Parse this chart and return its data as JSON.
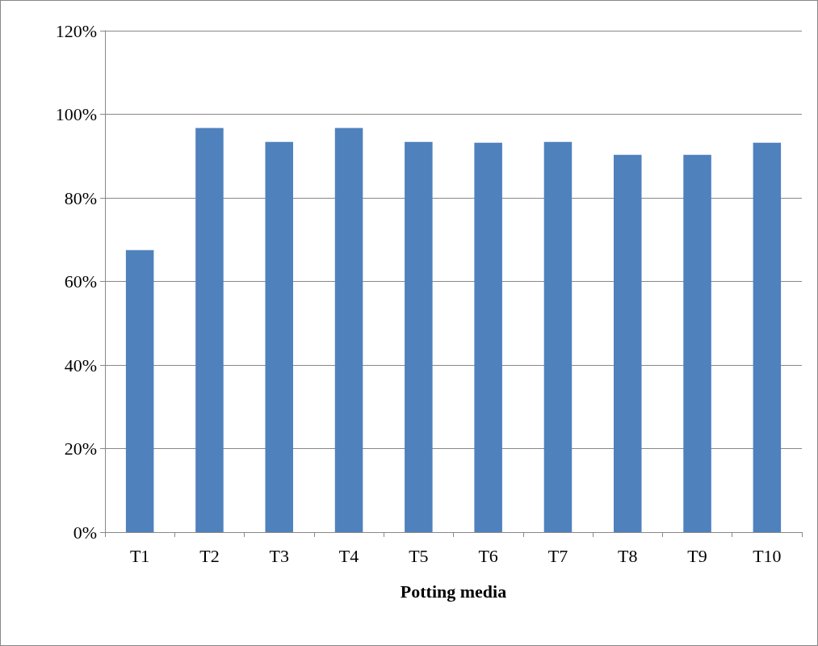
{
  "chart_data": {
    "type": "bar",
    "xlabel": "Potting media",
    "categories": [
      "T1",
      "T2",
      "T3",
      "T4",
      "T5",
      "T6",
      "T7",
      "T8",
      "T9",
      "T10"
    ],
    "values": [
      67.5,
      96.7,
      93.4,
      96.7,
      93.4,
      93.2,
      93.4,
      90.3,
      90.3,
      93.2
    ],
    "color": "#4f81bd",
    "ylim": [
      0,
      120
    ],
    "yticks": [
      {
        "value": 0,
        "label": "0%"
      },
      {
        "value": 20,
        "label": "20%"
      },
      {
        "value": 40,
        "label": "40%"
      },
      {
        "value": 60,
        "label": "60%"
      },
      {
        "value": 80,
        "label": "80%"
      },
      {
        "value": 100,
        "label": "100%"
      },
      {
        "value": 120,
        "label": "120%"
      }
    ],
    "grid": "y"
  }
}
